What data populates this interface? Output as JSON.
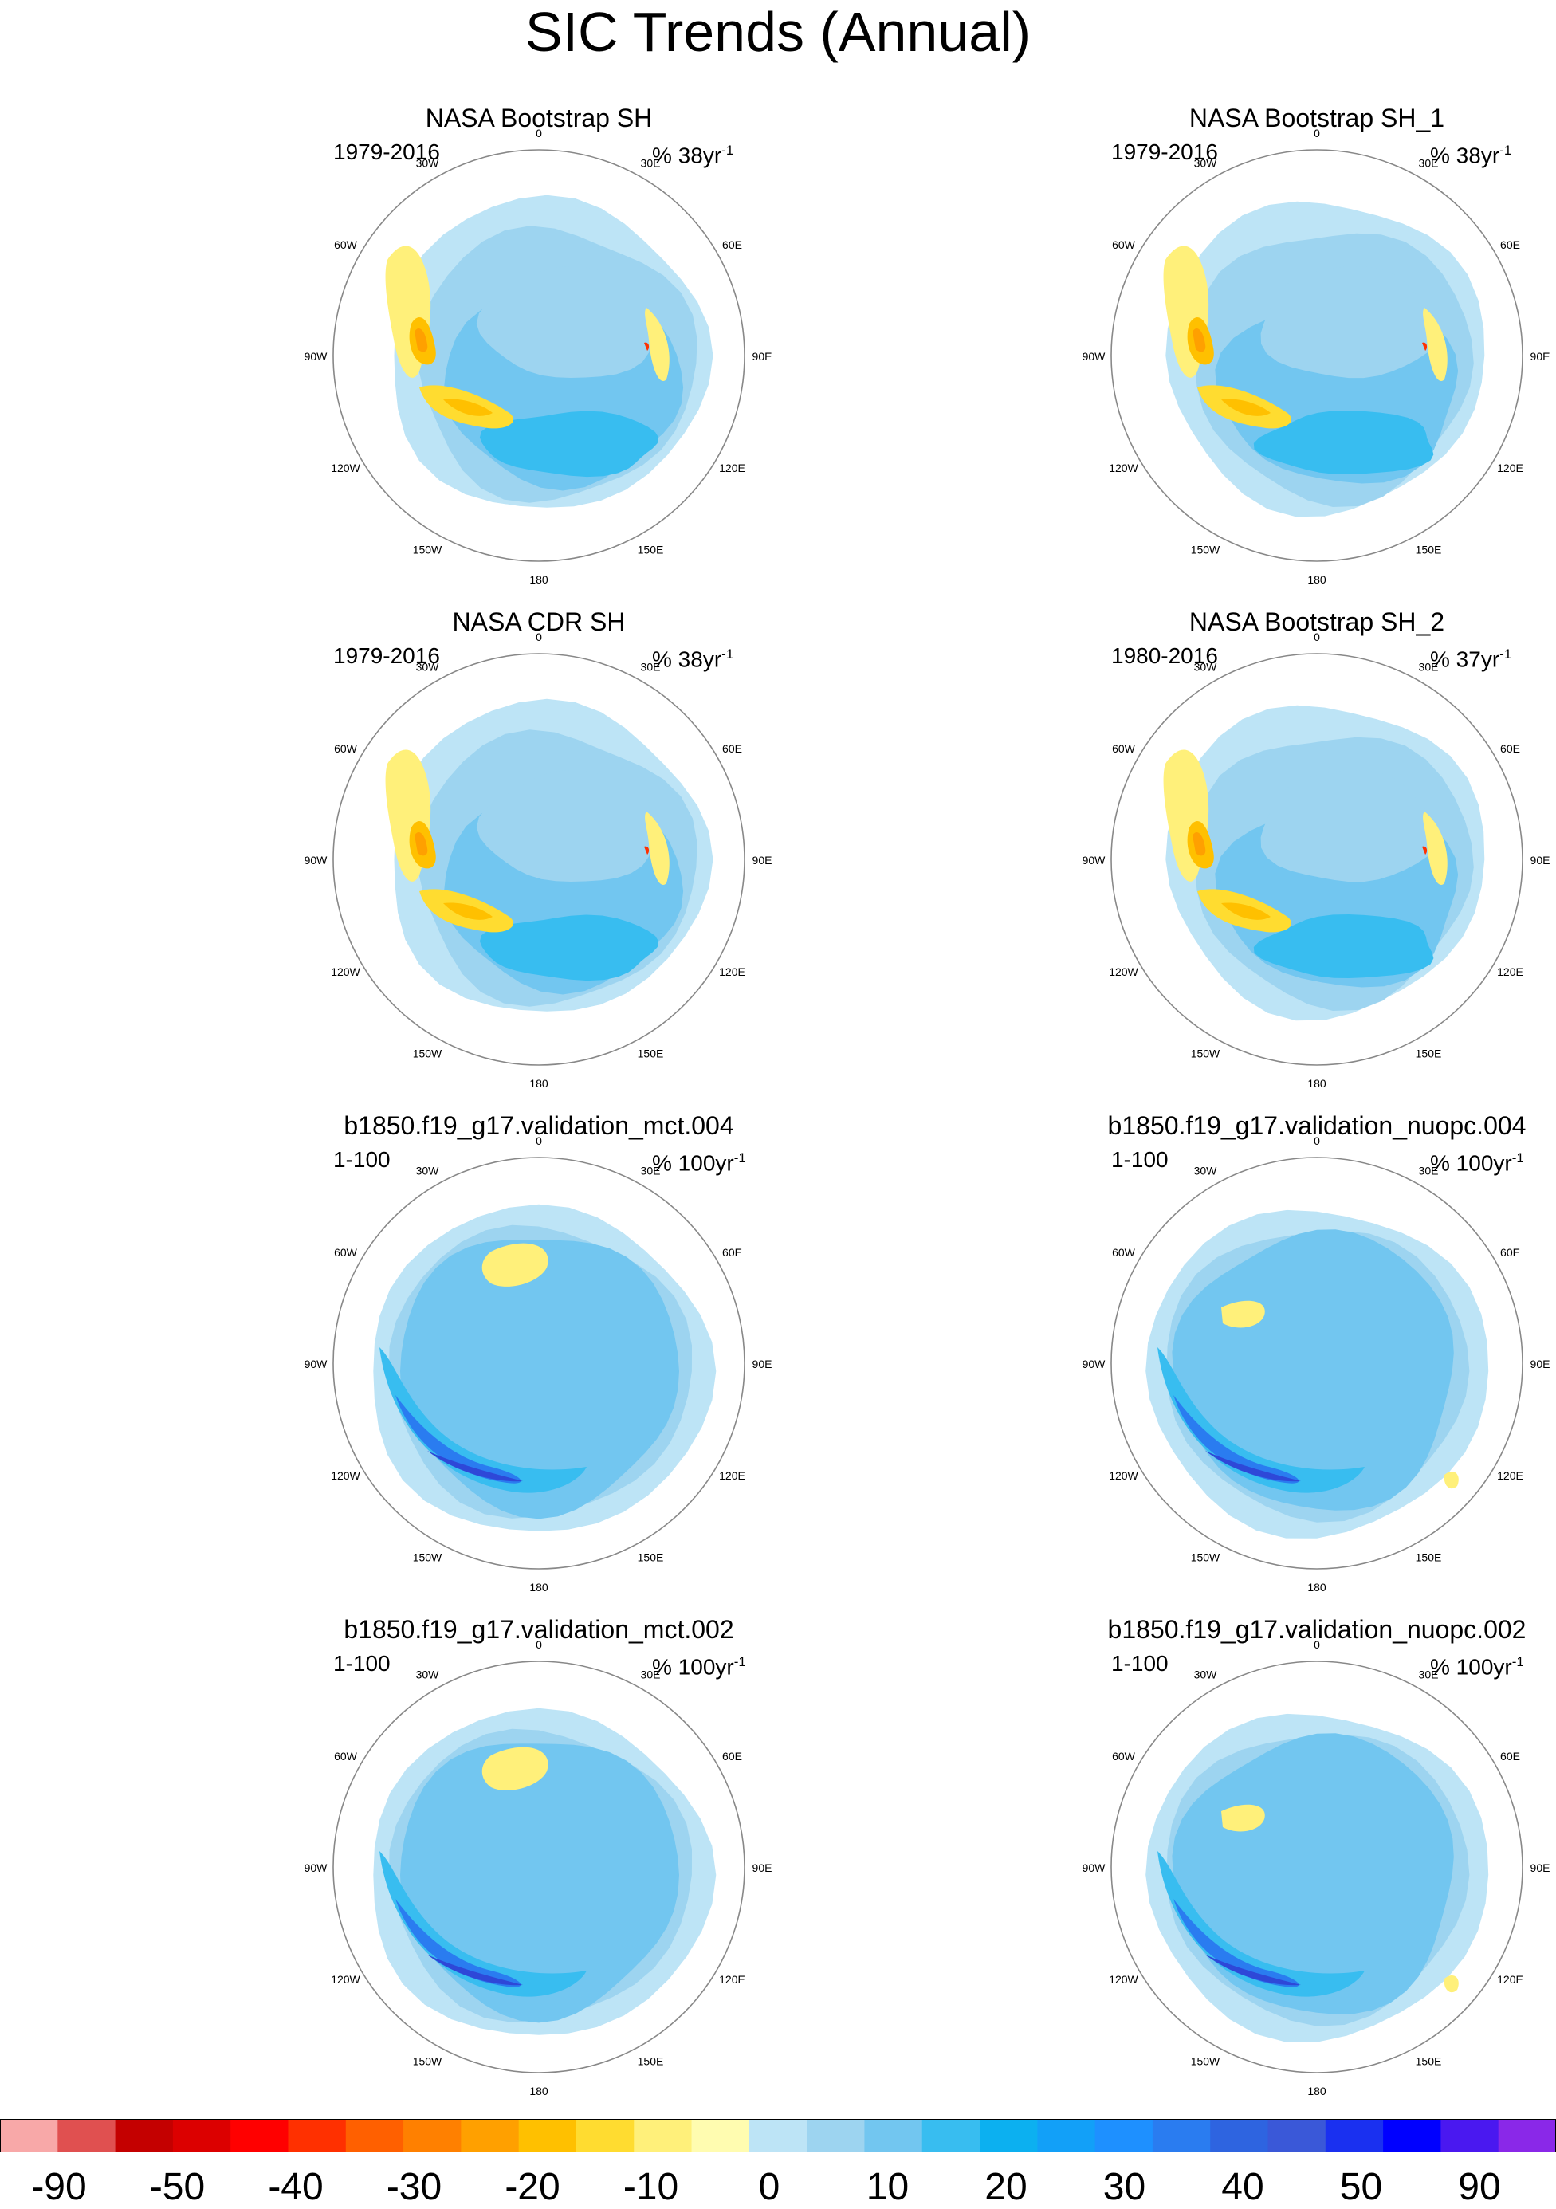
{
  "title": "SIC Trends (Annual)",
  "panels": [
    {
      "title": "NASA Bootstrap SH",
      "period": "1979-2016",
      "unit": "% 38yr",
      "unit_exp": "-1",
      "style": "obs_a"
    },
    {
      "title": "NASA Bootstrap SH_1",
      "period": "1979-2016",
      "unit": "% 38yr",
      "unit_exp": "-1",
      "style": "obs_b"
    },
    {
      "title": "NASA CDR SH",
      "period": "1979-2016",
      "unit": "% 38yr",
      "unit_exp": "-1",
      "style": "obs_a"
    },
    {
      "title": "NASA Bootstrap SH_2",
      "period": "1980-2016",
      "unit": "% 37yr",
      "unit_exp": "-1",
      "style": "obs_b"
    },
    {
      "title": "b1850.f19_g17.validation_mct.004",
      "period": "1-100",
      "unit": "% 100yr",
      "unit_exp": "-1",
      "style": "model_a"
    },
    {
      "title": "b1850.f19_g17.validation_nuopc.004",
      "period": "1-100",
      "unit": "% 100yr",
      "unit_exp": "-1",
      "style": "model_b"
    },
    {
      "title": "b1850.f19_g17.validation_mct.002",
      "period": "1-100",
      "unit": "% 100yr",
      "unit_exp": "-1",
      "style": "model_a"
    },
    {
      "title": "b1850.f19_g17.validation_nuopc.002",
      "period": "1-100",
      "unit": "% 100yr",
      "unit_exp": "-1",
      "style": "model_b"
    }
  ],
  "map_labels": {
    "lon_0": "0",
    "lon_30E": "30E",
    "lon_60E": "60E",
    "lon_90E": "90E",
    "lon_120E": "120E",
    "lon_150E": "150E",
    "lon_180": "180",
    "lon_150W": "150W",
    "lon_120W": "120W",
    "lon_90W": "90W",
    "lon_60W": "60W",
    "lon_30W": "30W"
  },
  "colorbar": {
    "colors": [
      "#f8a8a8",
      "#e05050",
      "#c40000",
      "#dc0000",
      "#ff0000",
      "#ff3000",
      "#ff6000",
      "#ff8000",
      "#ffa000",
      "#ffc000",
      "#ffdc30",
      "#fff07a",
      "#fffcb0",
      "#bde4f6",
      "#9dd4f0",
      "#72c6f0",
      "#38bdf0",
      "#0cb0f0",
      "#12a0f8",
      "#1e90ff",
      "#2a7cf0",
      "#2e64e0",
      "#3a58d8",
      "#1a30f0",
      "#0000ff",
      "#4a18f0",
      "#8a28e8"
    ],
    "labels": [
      "-90",
      "-50",
      "-40",
      "-30",
      "-20",
      "-10",
      "0",
      "10",
      "20",
      "30",
      "40",
      "50",
      "90"
    ]
  },
  "map_colors": {
    "land": "#b4b4b4",
    "coast": "#555555",
    "ring": "#888888",
    "light_blue": "#bde4f6",
    "mid_blue": "#9dd4f0",
    "blue": "#72c6f0",
    "bright_blue": "#38bdf0",
    "deep_blue": "#2a7cf0",
    "dark_blue": "#2e48d8",
    "light_yellow": "#fff07a",
    "yellow": "#ffdc30",
    "gold": "#ffc000",
    "orange": "#ffa000",
    "red": "#ff3000"
  }
}
